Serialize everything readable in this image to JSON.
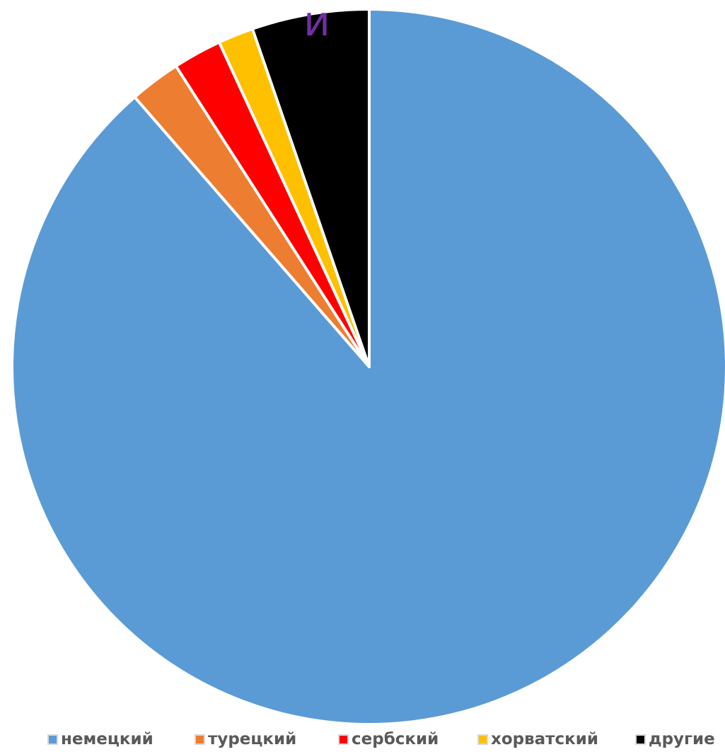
{
  "stray_text": {
    "text": "и",
    "color": "#7030a0"
  },
  "chart_data": {
    "type": "pie",
    "title": "",
    "start": "12 o'clock",
    "direction": "clockwise",
    "legend_position": "bottom",
    "slices": [
      {
        "label": "немецкий",
        "value": 88.6,
        "color": "#5b9bd5"
      },
      {
        "label": "турецкий",
        "value": 2.3,
        "color": "#ed7d31"
      },
      {
        "label": "сербский",
        "value": 2.2,
        "color": "#ff0000"
      },
      {
        "label": "хорватский",
        "value": 1.6,
        "color": "#ffc000"
      },
      {
        "label": "другие",
        "value": 5.3,
        "color": "#000000"
      }
    ]
  }
}
